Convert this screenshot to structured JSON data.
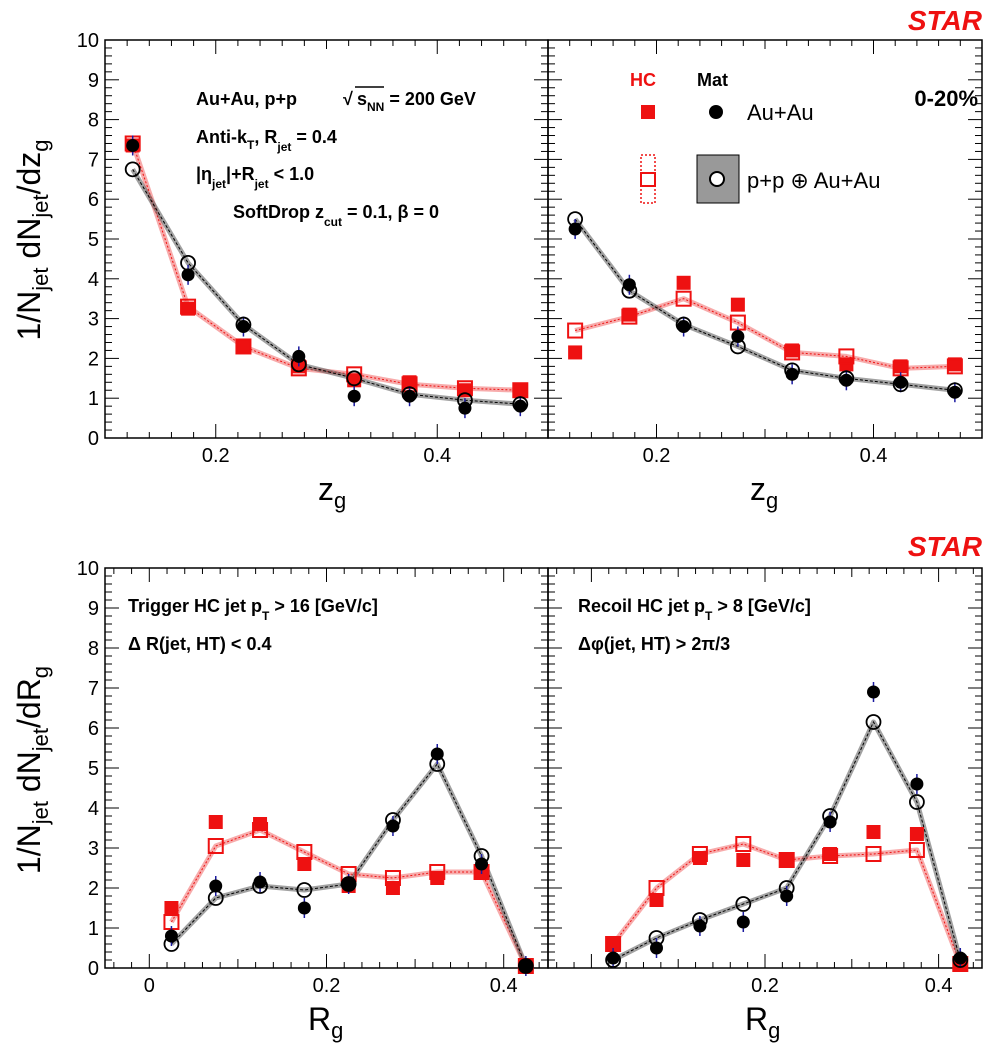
{
  "figure": {
    "experiment_label": "STAR",
    "top_row_ylabel": "1/N_jet dN_jet/dz_g",
    "bottom_row_ylabel": "1/N_jet dN_jet/dR_g",
    "top_row_xlabel": "z_g",
    "bottom_row_xlabel": "R_g",
    "annotations": {
      "system": "Au+Au, p+p",
      "energy_sqrt": "√",
      "energy_s": "s",
      "energy_sub": "NN",
      "energy_value": " = 200 GeV",
      "algo_main": "Anti-k",
      "algo_sub_T": "T",
      "algo_R": ", R",
      "algo_sub_jet": "jet",
      "algo_value": " = 0.4",
      "eta_left": "|η",
      "eta_sub_jet": "jet",
      "eta_mid": "|+R",
      "eta_sub_jet2": "jet",
      "eta_value": " < 1.0",
      "softdrop_main": "SoftDrop z",
      "softdrop_sub": "cut",
      "softdrop_value": " = 0.1,  β = 0",
      "centrality": "0-20%",
      "legend_hc": "HC",
      "legend_mat": "Mat",
      "legend_auau": "Au+Au",
      "legend_pp": "p+p ⊕ Au+Au",
      "trigger_main": "Trigger HC jet p",
      "trigger_sub": "T",
      "trigger_value": " > 16 [GeV/c]",
      "trigger_cut": "Δ R(jet, HT) < 0.4",
      "recoil_main": "Recoil HC jet p",
      "recoil_sub": "T",
      "recoil_value": " > 8 [GeV/c]",
      "recoil_cut": "Δφ(jet, HT) > 2π/3"
    },
    "colors": {
      "hc": "#ee1111",
      "mat": "#000000",
      "error_bar": "#1a1aa0"
    }
  },
  "chart_data": [
    {
      "panel": "top-left",
      "type": "scatter",
      "xlabel": "z_g",
      "ylabel": "1/N_jet dN_jet/dz_g",
      "xlim": [
        0.1,
        0.5
      ],
      "ylim": [
        0,
        10
      ],
      "xticks": [
        0.2,
        0.4
      ],
      "yticks": [
        0,
        1,
        2,
        3,
        4,
        5,
        6,
        7,
        8,
        9,
        10
      ],
      "x": [
        0.125,
        0.175,
        0.225,
        0.275,
        0.325,
        0.375,
        0.425,
        0.475
      ],
      "series": [
        {
          "name": "HC Au+Au",
          "marker": "filled-square",
          "values": [
            7.35,
            3.25,
            2.3,
            1.8,
            1.45,
            1.4,
            1.2,
            1.2
          ]
        },
        {
          "name": "HC p+p ⊕ Au+Au",
          "marker": "open-square",
          "values": [
            7.4,
            3.3,
            2.3,
            1.75,
            1.6,
            1.35,
            1.25,
            1.2
          ]
        },
        {
          "name": "Mat Au+Au",
          "marker": "filled-circle",
          "values": [
            7.35,
            4.1,
            2.8,
            2.05,
            1.05,
            1.05,
            0.75,
            0.8
          ]
        },
        {
          "name": "Mat p+p ⊕ Au+Au",
          "marker": "open-circle",
          "values": [
            6.75,
            4.4,
            2.85,
            1.85,
            1.5,
            1.1,
            0.95,
            0.85
          ]
        }
      ]
    },
    {
      "panel": "top-right",
      "type": "scatter",
      "xlabel": "z_g",
      "ylabel": "1/N_jet dN_jet/dz_g",
      "xlim": [
        0.1,
        0.5
      ],
      "ylim": [
        0,
        10
      ],
      "xticks": [
        0.2,
        0.4
      ],
      "yticks": [
        0,
        1,
        2,
        3,
        4,
        5,
        6,
        7,
        8,
        9,
        10
      ],
      "x": [
        0.125,
        0.175,
        0.225,
        0.275,
        0.325,
        0.375,
        0.425,
        0.475
      ],
      "series": [
        {
          "name": "HC Au+Au",
          "marker": "filled-square",
          "values": [
            2.15,
            3.1,
            3.9,
            3.35,
            2.2,
            1.85,
            1.8,
            1.85
          ]
        },
        {
          "name": "HC p+p ⊕ Au+Au",
          "marker": "open-square",
          "values": [
            2.7,
            3.05,
            3.5,
            2.9,
            2.15,
            2.05,
            1.75,
            1.8
          ]
        },
        {
          "name": "Mat Au+Au",
          "marker": "filled-circle",
          "values": [
            5.25,
            3.85,
            2.8,
            2.55,
            1.6,
            1.45,
            1.4,
            1.15
          ]
        },
        {
          "name": "Mat p+p ⊕ Au+Au",
          "marker": "open-circle",
          "values": [
            5.5,
            3.7,
            2.85,
            2.3,
            1.7,
            1.5,
            1.35,
            1.2
          ]
        }
      ]
    },
    {
      "panel": "bottom-left",
      "type": "scatter",
      "xlabel": "R_g",
      "ylabel": "1/N_jet dN_jet/dR_g",
      "xlim": [
        -0.05,
        0.45
      ],
      "ylim": [
        0,
        10
      ],
      "xticks": [
        0,
        0.2,
        0.4
      ],
      "yticks": [
        0,
        1,
        2,
        3,
        4,
        5,
        6,
        7,
        8,
        9,
        10
      ],
      "x": [
        0.025,
        0.075,
        0.125,
        0.175,
        0.225,
        0.275,
        0.325,
        0.375,
        0.425
      ],
      "series": [
        {
          "name": "HC Au+Au",
          "marker": "filled-square",
          "values": [
            1.5,
            3.65,
            3.6,
            2.6,
            2.05,
            2.0,
            2.25,
            2.4,
            0.05
          ]
        },
        {
          "name": "HC p+p ⊕ Au+Au",
          "marker": "open-square",
          "values": [
            1.15,
            3.05,
            3.45,
            2.9,
            2.35,
            2.25,
            2.4,
            2.4,
            0.05
          ]
        },
        {
          "name": "Mat Au+Au",
          "marker": "filled-circle",
          "values": [
            0.8,
            2.05,
            2.15,
            1.5,
            2.1,
            3.55,
            5.35,
            2.6,
            0.05
          ]
        },
        {
          "name": "Mat p+p ⊕ Au+Au",
          "marker": "open-circle",
          "values": [
            0.6,
            1.75,
            2.05,
            1.95,
            2.1,
            3.7,
            5.1,
            2.8,
            0.05
          ]
        }
      ]
    },
    {
      "panel": "bottom-right",
      "type": "scatter",
      "xlabel": "R_g",
      "ylabel": "1/N_jet dN_jet/dR_g",
      "xlim": [
        -0.05,
        0.45
      ],
      "ylim": [
        0,
        10
      ],
      "xticks": [
        0.2,
        0.4
      ],
      "yticks": [
        0,
        1,
        2,
        3,
        4,
        5,
        6,
        7,
        8,
        9,
        10
      ],
      "x": [
        0.025,
        0.075,
        0.125,
        0.175,
        0.225,
        0.275,
        0.325,
        0.375,
        0.425
      ],
      "series": [
        {
          "name": "HC Au+Au",
          "marker": "filled-square",
          "values": [
            0.6,
            1.7,
            2.75,
            2.7,
            2.7,
            2.85,
            3.4,
            3.35,
            0.1
          ]
        },
        {
          "name": "HC p+p ⊕ Au+Au",
          "marker": "open-square",
          "values": [
            0.6,
            2.0,
            2.85,
            3.1,
            2.7,
            2.8,
            2.85,
            2.95,
            0.1
          ]
        },
        {
          "name": "Mat Au+Au",
          "marker": "filled-circle",
          "values": [
            0.25,
            0.5,
            1.05,
            1.15,
            1.8,
            3.65,
            6.9,
            4.6,
            0.25
          ]
        },
        {
          "name": "Mat p+p ⊕ Au+Au",
          "marker": "open-circle",
          "values": [
            0.2,
            0.75,
            1.2,
            1.6,
            2.0,
            3.8,
            6.15,
            4.15,
            0.2
          ]
        }
      ]
    }
  ]
}
